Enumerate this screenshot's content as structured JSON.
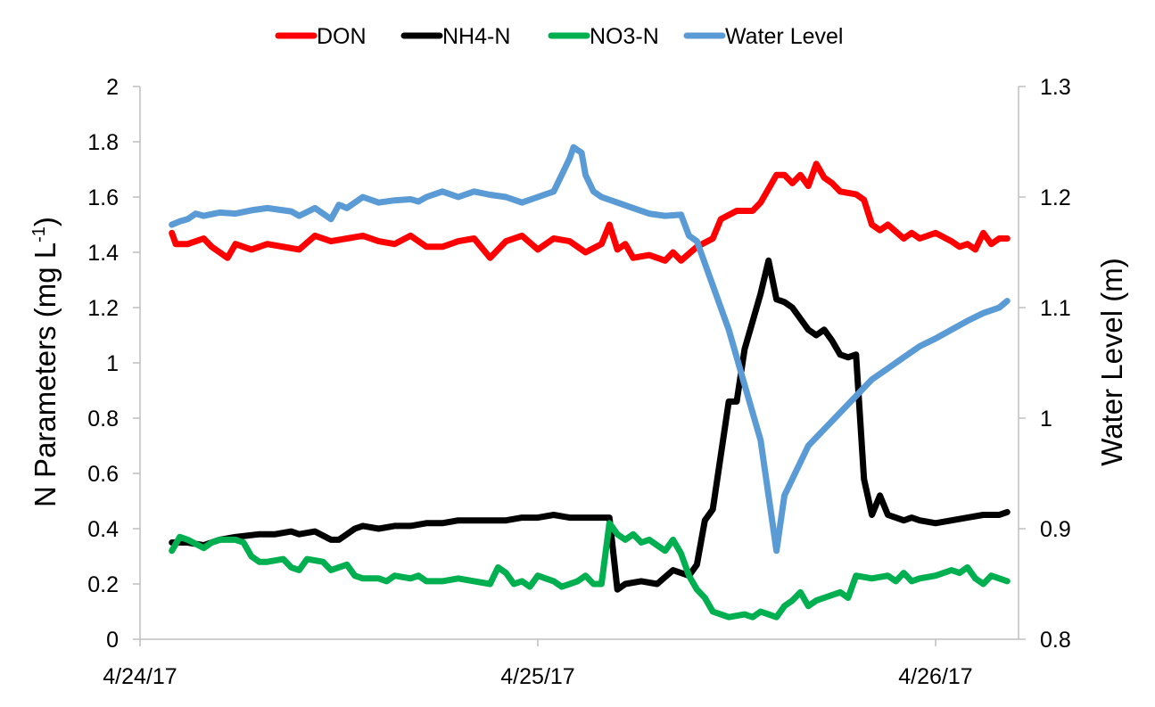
{
  "chart_data": {
    "type": "line",
    "title": "",
    "ylabel": "N Parameters (mg L",
    "ylabel_sup": "-1",
    "ylabel_close": ")",
    "y2label": "Water Level (m)",
    "ylim": [
      0,
      2
    ],
    "y2lim": [
      0.8,
      1.3
    ],
    "xlim": [
      0,
      1.165
    ],
    "yticks": [
      "0",
      "0.2",
      "0.4",
      "0.6",
      "0.8",
      "1",
      "1.2",
      "1.4",
      "1.6",
      "1.8",
      "2"
    ],
    "y2ticks": [
      "0.8",
      "0.9",
      "1",
      "1.1",
      "1.2",
      "1.3"
    ],
    "xticks": [
      {
        "x": 0,
        "label": "4/24/17"
      },
      {
        "x": 0.5,
        "label": "4/25/17"
      },
      {
        "x": 1,
        "label": "4/26/17"
      }
    ],
    "legend_position": "top-center",
    "grid": false,
    "series": [
      {
        "name": "DON",
        "axis": "left",
        "color": "#ff0000",
        "points": [
          [
            0.04,
            1.47
          ],
          [
            0.045,
            1.43
          ],
          [
            0.06,
            1.43
          ],
          [
            0.08,
            1.45
          ],
          [
            0.09,
            1.42
          ],
          [
            0.1,
            1.4
          ],
          [
            0.11,
            1.38
          ],
          [
            0.12,
            1.43
          ],
          [
            0.14,
            1.41
          ],
          [
            0.16,
            1.43
          ],
          [
            0.18,
            1.42
          ],
          [
            0.2,
            1.41
          ],
          [
            0.22,
            1.46
          ],
          [
            0.24,
            1.44
          ],
          [
            0.26,
            1.45
          ],
          [
            0.28,
            1.46
          ],
          [
            0.3,
            1.44
          ],
          [
            0.32,
            1.43
          ],
          [
            0.34,
            1.46
          ],
          [
            0.36,
            1.42
          ],
          [
            0.38,
            1.42
          ],
          [
            0.4,
            1.44
          ],
          [
            0.42,
            1.45
          ],
          [
            0.44,
            1.38
          ],
          [
            0.46,
            1.44
          ],
          [
            0.48,
            1.46
          ],
          [
            0.5,
            1.41
          ],
          [
            0.52,
            1.45
          ],
          [
            0.54,
            1.44
          ],
          [
            0.56,
            1.4
          ],
          [
            0.58,
            1.43
          ],
          [
            0.59,
            1.5
          ],
          [
            0.6,
            1.41
          ],
          [
            0.61,
            1.43
          ],
          [
            0.62,
            1.38
          ],
          [
            0.64,
            1.39
          ],
          [
            0.66,
            1.37
          ],
          [
            0.67,
            1.4
          ],
          [
            0.68,
            1.37
          ],
          [
            0.7,
            1.42
          ],
          [
            0.72,
            1.45
          ],
          [
            0.73,
            1.52
          ],
          [
            0.75,
            1.55
          ],
          [
            0.77,
            1.55
          ],
          [
            0.78,
            1.58
          ],
          [
            0.8,
            1.68
          ],
          [
            0.81,
            1.68
          ],
          [
            0.82,
            1.65
          ],
          [
            0.83,
            1.68
          ],
          [
            0.84,
            1.64
          ],
          [
            0.85,
            1.72
          ],
          [
            0.86,
            1.67
          ],
          [
            0.87,
            1.65
          ],
          [
            0.88,
            1.62
          ],
          [
            0.9,
            1.61
          ],
          [
            0.91,
            1.59
          ],
          [
            0.92,
            1.5
          ],
          [
            0.93,
            1.48
          ],
          [
            0.94,
            1.5
          ],
          [
            0.96,
            1.45
          ],
          [
            0.97,
            1.47
          ],
          [
            0.98,
            1.45
          ],
          [
            1.0,
            1.47
          ],
          [
            1.02,
            1.44
          ],
          [
            1.03,
            1.42
          ],
          [
            1.04,
            1.43
          ],
          [
            1.05,
            1.41
          ],
          [
            1.06,
            1.47
          ],
          [
            1.07,
            1.43
          ],
          [
            1.08,
            1.45
          ],
          [
            1.09,
            1.45
          ]
        ]
      },
      {
        "name": "NH4-N",
        "axis": "left",
        "color": "#000000",
        "points": [
          [
            0.04,
            0.35
          ],
          [
            0.06,
            0.35
          ],
          [
            0.08,
            0.34
          ],
          [
            0.1,
            0.36
          ],
          [
            0.12,
            0.37
          ],
          [
            0.15,
            0.38
          ],
          [
            0.17,
            0.38
          ],
          [
            0.19,
            0.39
          ],
          [
            0.2,
            0.38
          ],
          [
            0.22,
            0.39
          ],
          [
            0.24,
            0.36
          ],
          [
            0.25,
            0.36
          ],
          [
            0.27,
            0.4
          ],
          [
            0.28,
            0.41
          ],
          [
            0.3,
            0.4
          ],
          [
            0.32,
            0.41
          ],
          [
            0.34,
            0.41
          ],
          [
            0.36,
            0.42
          ],
          [
            0.38,
            0.42
          ],
          [
            0.4,
            0.43
          ],
          [
            0.42,
            0.43
          ],
          [
            0.44,
            0.43
          ],
          [
            0.46,
            0.43
          ],
          [
            0.48,
            0.44
          ],
          [
            0.5,
            0.44
          ],
          [
            0.52,
            0.45
          ],
          [
            0.54,
            0.44
          ],
          [
            0.56,
            0.44
          ],
          [
            0.58,
            0.44
          ],
          [
            0.59,
            0.44
          ],
          [
            0.6,
            0.18
          ],
          [
            0.61,
            0.2
          ],
          [
            0.63,
            0.21
          ],
          [
            0.65,
            0.2
          ],
          [
            0.67,
            0.25
          ],
          [
            0.69,
            0.23
          ],
          [
            0.7,
            0.27
          ],
          [
            0.71,
            0.43
          ],
          [
            0.72,
            0.47
          ],
          [
            0.74,
            0.86
          ],
          [
            0.75,
            0.86
          ],
          [
            0.76,
            1.05
          ],
          [
            0.78,
            1.25
          ],
          [
            0.79,
            1.37
          ],
          [
            0.8,
            1.23
          ],
          [
            0.81,
            1.22
          ],
          [
            0.82,
            1.2
          ],
          [
            0.84,
            1.12
          ],
          [
            0.85,
            1.1
          ],
          [
            0.86,
            1.12
          ],
          [
            0.87,
            1.08
          ],
          [
            0.88,
            1.03
          ],
          [
            0.89,
            1.02
          ],
          [
            0.9,
            1.03
          ],
          [
            0.91,
            0.58
          ],
          [
            0.92,
            0.45
          ],
          [
            0.93,
            0.52
          ],
          [
            0.94,
            0.45
          ],
          [
            0.95,
            0.44
          ],
          [
            0.96,
            0.43
          ],
          [
            0.97,
            0.44
          ],
          [
            0.98,
            0.43
          ],
          [
            1.0,
            0.42
          ],
          [
            1.02,
            0.43
          ],
          [
            1.04,
            0.44
          ],
          [
            1.06,
            0.45
          ],
          [
            1.08,
            0.45
          ],
          [
            1.09,
            0.46
          ]
        ]
      },
      {
        "name": "NO3-N",
        "axis": "left",
        "color": "#00b050",
        "points": [
          [
            0.04,
            0.32
          ],
          [
            0.05,
            0.37
          ],
          [
            0.06,
            0.36
          ],
          [
            0.08,
            0.33
          ],
          [
            0.09,
            0.35
          ],
          [
            0.1,
            0.36
          ],
          [
            0.12,
            0.36
          ],
          [
            0.13,
            0.35
          ],
          [
            0.14,
            0.3
          ],
          [
            0.15,
            0.28
          ],
          [
            0.16,
            0.28
          ],
          [
            0.18,
            0.29
          ],
          [
            0.19,
            0.26
          ],
          [
            0.2,
            0.25
          ],
          [
            0.21,
            0.29
          ],
          [
            0.23,
            0.28
          ],
          [
            0.24,
            0.25
          ],
          [
            0.26,
            0.27
          ],
          [
            0.27,
            0.23
          ],
          [
            0.28,
            0.22
          ],
          [
            0.3,
            0.22
          ],
          [
            0.31,
            0.21
          ],
          [
            0.32,
            0.23
          ],
          [
            0.34,
            0.22
          ],
          [
            0.35,
            0.23
          ],
          [
            0.36,
            0.21
          ],
          [
            0.38,
            0.21
          ],
          [
            0.4,
            0.22
          ],
          [
            0.42,
            0.21
          ],
          [
            0.44,
            0.2
          ],
          [
            0.45,
            0.26
          ],
          [
            0.46,
            0.24
          ],
          [
            0.47,
            0.2
          ],
          [
            0.48,
            0.21
          ],
          [
            0.49,
            0.19
          ],
          [
            0.5,
            0.23
          ],
          [
            0.52,
            0.21
          ],
          [
            0.53,
            0.19
          ],
          [
            0.55,
            0.21
          ],
          [
            0.56,
            0.23
          ],
          [
            0.57,
            0.2
          ],
          [
            0.58,
            0.2
          ],
          [
            0.59,
            0.42
          ],
          [
            0.6,
            0.38
          ],
          [
            0.61,
            0.36
          ],
          [
            0.62,
            0.38
          ],
          [
            0.63,
            0.35
          ],
          [
            0.64,
            0.36
          ],
          [
            0.65,
            0.34
          ],
          [
            0.66,
            0.32
          ],
          [
            0.67,
            0.36
          ],
          [
            0.68,
            0.31
          ],
          [
            0.69,
            0.23
          ],
          [
            0.7,
            0.18
          ],
          [
            0.71,
            0.15
          ],
          [
            0.72,
            0.1
          ],
          [
            0.73,
            0.09
          ],
          [
            0.74,
            0.08
          ],
          [
            0.76,
            0.09
          ],
          [
            0.77,
            0.08
          ],
          [
            0.78,
            0.1
          ],
          [
            0.79,
            0.09
          ],
          [
            0.8,
            0.08
          ],
          [
            0.81,
            0.12
          ],
          [
            0.82,
            0.14
          ],
          [
            0.83,
            0.17
          ],
          [
            0.84,
            0.12
          ],
          [
            0.85,
            0.14
          ],
          [
            0.86,
            0.15
          ],
          [
            0.88,
            0.17
          ],
          [
            0.89,
            0.15
          ],
          [
            0.9,
            0.23
          ],
          [
            0.92,
            0.22
          ],
          [
            0.94,
            0.23
          ],
          [
            0.95,
            0.21
          ],
          [
            0.96,
            0.24
          ],
          [
            0.97,
            0.21
          ],
          [
            0.98,
            0.22
          ],
          [
            1.0,
            0.23
          ],
          [
            1.02,
            0.25
          ],
          [
            1.03,
            0.24
          ],
          [
            1.04,
            0.26
          ],
          [
            1.05,
            0.22
          ],
          [
            1.06,
            0.2
          ],
          [
            1.07,
            0.23
          ],
          [
            1.08,
            0.22
          ],
          [
            1.09,
            0.21
          ]
        ]
      },
      {
        "name": "Water Level",
        "axis": "right",
        "color": "#5b9bd5",
        "points": [
          [
            0.04,
            1.175
          ],
          [
            0.05,
            1.178
          ],
          [
            0.06,
            1.18
          ],
          [
            0.07,
            1.185
          ],
          [
            0.08,
            1.183
          ],
          [
            0.1,
            1.186
          ],
          [
            0.12,
            1.185
          ],
          [
            0.14,
            1.188
          ],
          [
            0.16,
            1.19
          ],
          [
            0.18,
            1.188
          ],
          [
            0.19,
            1.187
          ],
          [
            0.2,
            1.183
          ],
          [
            0.22,
            1.19
          ],
          [
            0.24,
            1.18
          ],
          [
            0.25,
            1.193
          ],
          [
            0.26,
            1.19
          ],
          [
            0.28,
            1.2
          ],
          [
            0.3,
            1.195
          ],
          [
            0.32,
            1.197
          ],
          [
            0.34,
            1.198
          ],
          [
            0.35,
            1.196
          ],
          [
            0.36,
            1.2
          ],
          [
            0.38,
            1.205
          ],
          [
            0.4,
            1.2
          ],
          [
            0.42,
            1.205
          ],
          [
            0.44,
            1.202
          ],
          [
            0.46,
            1.2
          ],
          [
            0.48,
            1.195
          ],
          [
            0.5,
            1.2
          ],
          [
            0.52,
            1.205
          ],
          [
            0.53,
            1.22
          ],
          [
            0.54,
            1.235
          ],
          [
            0.545,
            1.245
          ],
          [
            0.555,
            1.24
          ],
          [
            0.56,
            1.22
          ],
          [
            0.57,
            1.205
          ],
          [
            0.58,
            1.2
          ],
          [
            0.6,
            1.195
          ],
          [
            0.62,
            1.19
          ],
          [
            0.64,
            1.185
          ],
          [
            0.66,
            1.183
          ],
          [
            0.68,
            1.184
          ],
          [
            0.69,
            1.165
          ],
          [
            0.7,
            1.16
          ],
          [
            0.72,
            1.12
          ],
          [
            0.74,
            1.08
          ],
          [
            0.76,
            1.03
          ],
          [
            0.78,
            0.98
          ],
          [
            0.79,
            0.93
          ],
          [
            0.8,
            0.88
          ],
          [
            0.81,
            0.93
          ],
          [
            0.82,
            0.945
          ],
          [
            0.84,
            0.975
          ],
          [
            0.86,
            0.99
          ],
          [
            0.88,
            1.005
          ],
          [
            0.9,
            1.02
          ],
          [
            0.92,
            1.035
          ],
          [
            0.94,
            1.045
          ],
          [
            0.96,
            1.055
          ],
          [
            0.98,
            1.065
          ],
          [
            1.0,
            1.072
          ],
          [
            1.02,
            1.08
          ],
          [
            1.04,
            1.088
          ],
          [
            1.06,
            1.095
          ],
          [
            1.08,
            1.1
          ],
          [
            1.09,
            1.106
          ]
        ]
      }
    ]
  }
}
